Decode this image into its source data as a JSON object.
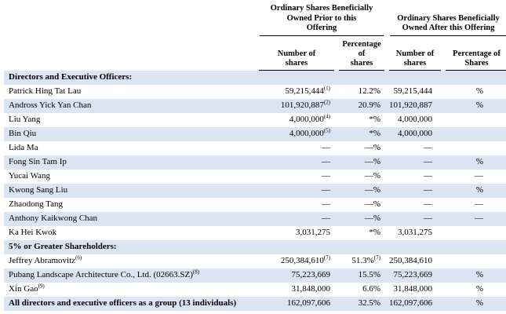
{
  "colors": {
    "row_shade": "#dbe5f1",
    "rule": "#000000"
  },
  "table": {
    "group_headers": [
      {
        "lines": [
          "Ordinary Shares Beneficially",
          "Owned Prior to this",
          "Offering"
        ]
      },
      {
        "lines": [
          "Ordinary Shares Beneficially",
          "Owned After this Offering"
        ]
      }
    ],
    "sub_headers": [
      {
        "lines": [
          "Number of",
          "shares"
        ]
      },
      {
        "lines": [
          "Percentage of",
          "shares"
        ]
      },
      {
        "lines": [
          "Number of",
          "shares"
        ]
      },
      {
        "lines": [
          "Percentage of",
          "Shares"
        ]
      }
    ],
    "rows": [
      {
        "type": "section",
        "label": "Directors and Executive Officers:",
        "shaded": true
      },
      {
        "type": "data",
        "name": "Patrick Hing Tat Lau",
        "shaded": false,
        "cells": [
          {
            "t": "59,215,444",
            "s": "(1)"
          },
          {
            "t": "12.2%"
          },
          {
            "t": "59,215,444"
          },
          {
            "t": "%"
          }
        ]
      },
      {
        "type": "data",
        "name": "Andross Yick Yan Chan",
        "shaded": true,
        "cells": [
          {
            "t": "101,920,887",
            "s": "(2)"
          },
          {
            "t": "20.9%"
          },
          {
            "t": "101,920,887"
          },
          {
            "t": "%"
          }
        ]
      },
      {
        "type": "data",
        "name": "Liu Yang",
        "shaded": false,
        "cells": [
          {
            "t": "4,000,000",
            "s": "(4)"
          },
          {
            "t": "*%"
          },
          {
            "t": "4,000,000"
          },
          {
            "t": ""
          }
        ]
      },
      {
        "type": "data",
        "name": "Bin Qiu",
        "shaded": true,
        "cells": [
          {
            "t": "4,000,000",
            "s": "(5)"
          },
          {
            "t": "*%"
          },
          {
            "t": "4,000,000"
          },
          {
            "t": ""
          }
        ]
      },
      {
        "type": "data",
        "name": "Lida Ma",
        "shaded": false,
        "cells": [
          {
            "t": "—"
          },
          {
            "t": "—%"
          },
          {
            "t": "—"
          },
          {
            "t": ""
          }
        ]
      },
      {
        "type": "data",
        "name": "Fong Sin Tam Ip",
        "shaded": true,
        "cells": [
          {
            "t": "—"
          },
          {
            "t": "—%"
          },
          {
            "t": "—"
          },
          {
            "t": "%"
          }
        ]
      },
      {
        "type": "data",
        "name": "Yucai Wang",
        "shaded": false,
        "cells": [
          {
            "t": "—"
          },
          {
            "t": "—%"
          },
          {
            "t": "—"
          },
          {
            "t": "—"
          }
        ]
      },
      {
        "type": "data",
        "name": "Kwong Sang Liu",
        "shaded": true,
        "cells": [
          {
            "t": "—"
          },
          {
            "t": "—%"
          },
          {
            "t": "—"
          },
          {
            "t": "%"
          }
        ]
      },
      {
        "type": "data",
        "name": "Zhaodong Tang",
        "shaded": false,
        "cells": [
          {
            "t": "—"
          },
          {
            "t": "—%"
          },
          {
            "t": "—"
          },
          {
            "t": "—"
          }
        ]
      },
      {
        "type": "data",
        "name": "Anthony Kaikwong Chan",
        "shaded": true,
        "cells": [
          {
            "t": "—"
          },
          {
            "t": "—%"
          },
          {
            "t": "—"
          },
          {
            "t": "—"
          }
        ]
      },
      {
        "type": "data",
        "name": "Ka Hei Kwok",
        "shaded": false,
        "cells": [
          {
            "t": "3,031,275"
          },
          {
            "t": "*%"
          },
          {
            "t": "3,031,275"
          },
          {
            "t": ""
          }
        ]
      },
      {
        "type": "section",
        "label": "5% or Greater Shareholders:",
        "shaded": true
      },
      {
        "type": "data",
        "name": "Jeffrey Abramovitz",
        "name_sup": "(6)",
        "shaded": false,
        "cells": [
          {
            "t": "250,384,610",
            "s": "(7)"
          },
          {
            "t": "51.3%",
            "s": "(7)"
          },
          {
            "t": "250,384,610"
          },
          {
            "t": ""
          }
        ]
      },
      {
        "type": "data",
        "name": "Pubang Landscape Architecture Co., Ltd. (02663.SZ)",
        "name_sup": "(8)",
        "shaded": true,
        "cells": [
          {
            "t": "75,223,669"
          },
          {
            "t": "15.5%"
          },
          {
            "t": "75,223,669"
          },
          {
            "t": "%"
          }
        ]
      },
      {
        "type": "data",
        "name": "Xin Gao",
        "name_sup": "(9)",
        "shaded": false,
        "cells": [
          {
            "t": "31,848,000"
          },
          {
            "t": "6.6%"
          },
          {
            "t": "31,848,000"
          },
          {
            "t": "%"
          }
        ]
      },
      {
        "type": "data",
        "name": "All directors and executive officers as a group (13 individuals)",
        "bold": true,
        "shaded": true,
        "cells": [
          {
            "t": "162,097,606"
          },
          {
            "t": "32.5%"
          },
          {
            "t": "162,097,606"
          },
          {
            "t": "%"
          }
        ]
      }
    ]
  }
}
